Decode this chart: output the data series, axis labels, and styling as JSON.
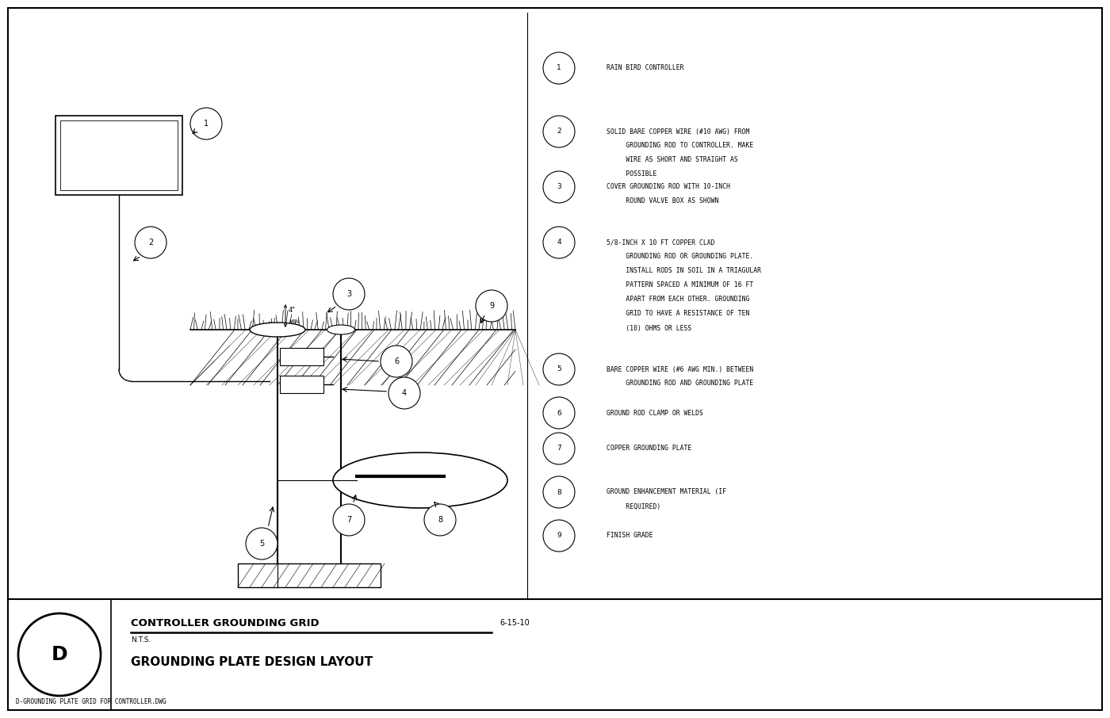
{
  "bg_color": "#ffffff",
  "line_color": "#000000",
  "title1": "CONTROLLER GROUNDING GRID",
  "title2": "GROUNDING PLATE DESIGN LAYOUT",
  "date": "6-15-10",
  "scale": "N.T.S.",
  "section_letter": "D",
  "filename": "D-GROUNDING PLATE GRID FOR CONTROLLER.DWG",
  "legend": [
    {
      "num": "1",
      "text": [
        "RAIN BIRD CONTROLLER"
      ]
    },
    {
      "num": "2",
      "text": [
        "SOLID BARE COPPER WIRE (#10 AWG) FROM",
        "     GROUNDING ROD TO CONTROLLER. MAKE",
        "     WIRE AS SHORT AND STRAIGHT AS",
        "     POSSIBLE"
      ]
    },
    {
      "num": "3",
      "text": [
        "COVER GROUNDING ROD WITH 10-INCH",
        "     ROUND VALVE BOX AS SHOWN"
      ]
    },
    {
      "num": "4",
      "text": [
        "5/8-INCH X 10 FT COPPER CLAD",
        "     GROUNDING ROD OR GROUNDING PLATE.",
        "     INSTALL RODS IN SOIL IN A TRIAGULAR",
        "     PATTERN SPACED A MINIMUM OF 16 FT",
        "     APART FROM EACH OTHER. GROUNDING",
        "     GRID TO HAVE A RESISTANCE OF TEN",
        "     (10) OHMS OR LESS"
      ]
    },
    {
      "num": "5",
      "text": [
        "BARE COPPER WIRE (#6 AWG MIN.) BETWEEN",
        "     GROUNDING ROD AND GROUNDING PLATE"
      ]
    },
    {
      "num": "6",
      "text": [
        "GROUND ROD CLAMP OR WELDS"
      ]
    },
    {
      "num": "7",
      "text": [
        "COPPER GROUNDING PLATE"
      ]
    },
    {
      "num": "8",
      "text": [
        "GROUND ENHANCEMENT MATERIAL (IF",
        "     REQUIRED)"
      ]
    },
    {
      "num": "9",
      "text": [
        "FINISH GRADE"
      ]
    }
  ]
}
